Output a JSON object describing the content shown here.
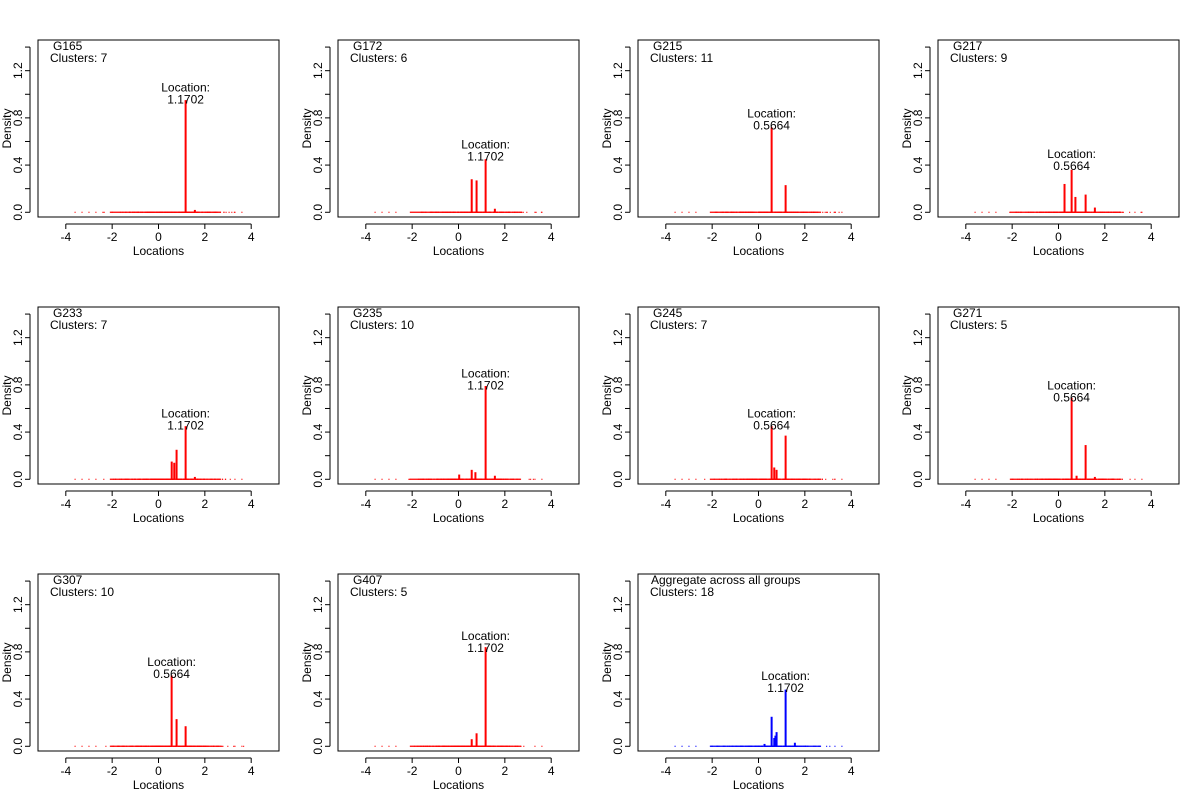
{
  "colors": {
    "group": "#ff0000",
    "aggregate": "#0000ff",
    "axis": "#000000"
  },
  "chart_data": [
    {
      "type": "line",
      "title": "G165",
      "subtitle": "Clusters: 7",
      "xlabel": "Locations",
      "ylabel": "Density",
      "xlim": [
        -5.2,
        5.2
      ],
      "ylim": [
        -0.04,
        1.46
      ],
      "xticks": [
        "-4",
        "-2",
        "0",
        "2",
        "4"
      ],
      "yticks": [
        "0.0",
        "0.4",
        "0.8",
        "1.2"
      ],
      "annotation": {
        "label": "Location:",
        "value": "1.1702",
        "x": 1.1702,
        "y": 0.92
      },
      "series": [
        {
          "color": "red",
          "x": [
            1.1702,
            1.57
          ],
          "y": [
            0.95,
            0.02
          ]
        }
      ]
    },
    {
      "type": "line",
      "title": "G172",
      "subtitle": "Clusters: 6",
      "xlabel": "Locations",
      "ylabel": "Density",
      "xlim": [
        -5.2,
        5.2
      ],
      "ylim": [
        -0.04,
        1.46
      ],
      "xticks": [
        "-4",
        "-2",
        "0",
        "2",
        "4"
      ],
      "yticks": [
        "0.0",
        "0.4",
        "0.8",
        "1.2"
      ],
      "annotation": {
        "label": "Location:",
        "value": "1.1702",
        "x": 1.1702,
        "y": 0.44
      },
      "series": [
        {
          "color": "red",
          "x": [
            0.57,
            0.78,
            1.1702,
            1.57
          ],
          "y": [
            0.28,
            0.27,
            0.45,
            0.03
          ]
        }
      ]
    },
    {
      "type": "line",
      "title": "G215",
      "subtitle": "Clusters: 11",
      "xlabel": "Locations",
      "ylabel": "Density",
      "xlim": [
        -5.2,
        5.2
      ],
      "ylim": [
        -0.04,
        1.46
      ],
      "xticks": [
        "-4",
        "-2",
        "0",
        "2",
        "4"
      ],
      "yticks": [
        "0.0",
        "0.4",
        "0.8",
        "1.2"
      ],
      "annotation": {
        "label": "Location:",
        "value": "0.5664",
        "x": 0.5664,
        "y": 0.7
      },
      "series": [
        {
          "color": "red",
          "x": [
            0.5664,
            1.1702
          ],
          "y": [
            0.72,
            0.23
          ]
        }
      ]
    },
    {
      "type": "line",
      "title": "G217",
      "subtitle": "Clusters: 9",
      "xlabel": "Locations",
      "ylabel": "Density",
      "xlim": [
        -5.2,
        5.2
      ],
      "ylim": [
        -0.04,
        1.46
      ],
      "xticks": [
        "-4",
        "-2",
        "0",
        "2",
        "4"
      ],
      "yticks": [
        "0.0",
        "0.4",
        "0.8",
        "1.2"
      ],
      "annotation": {
        "label": "Location:",
        "value": "0.5664",
        "x": 0.5664,
        "y": 0.36
      },
      "series": [
        {
          "color": "red",
          "x": [
            0.26,
            0.5664,
            0.73,
            1.1702,
            1.57
          ],
          "y": [
            0.24,
            0.36,
            0.13,
            0.15,
            0.04
          ]
        }
      ]
    },
    {
      "type": "line",
      "title": "G233",
      "subtitle": "Clusters: 7",
      "xlabel": "Locations",
      "ylabel": "Density",
      "xlim": [
        -5.2,
        5.2
      ],
      "ylim": [
        -0.04,
        1.46
      ],
      "xticks": [
        "-4",
        "-2",
        "0",
        "2",
        "4"
      ],
      "yticks": [
        "0.0",
        "0.4",
        "0.8",
        "1.2"
      ],
      "annotation": {
        "label": "Location:",
        "value": "1.1702",
        "x": 1.1702,
        "y": 0.42
      },
      "series": [
        {
          "color": "red",
          "x": [
            0.57,
            0.68,
            0.78,
            1.1702,
            1.57
          ],
          "y": [
            0.15,
            0.14,
            0.25,
            0.45,
            0.02
          ]
        }
      ]
    },
    {
      "type": "line",
      "title": "G235",
      "subtitle": "Clusters: 10",
      "xlabel": "Locations",
      "ylabel": "Density",
      "xlim": [
        -5.2,
        5.2
      ],
      "ylim": [
        -0.04,
        1.46
      ],
      "xticks": [
        "-4",
        "-2",
        "0",
        "2",
        "4"
      ],
      "yticks": [
        "0.0",
        "0.4",
        "0.8",
        "1.2"
      ],
      "annotation": {
        "label": "Location:",
        "value": "1.1702",
        "x": 1.1702,
        "y": 0.76
      },
      "series": [
        {
          "color": "red",
          "x": [
            0.03,
            0.57,
            0.73,
            1.1702,
            1.57
          ],
          "y": [
            0.04,
            0.08,
            0.06,
            0.79,
            0.03
          ]
        }
      ]
    },
    {
      "type": "line",
      "title": "G245",
      "subtitle": "Clusters: 7",
      "xlabel": "Locations",
      "ylabel": "Density",
      "xlim": [
        -5.2,
        5.2
      ],
      "ylim": [
        -0.04,
        1.46
      ],
      "xticks": [
        "-4",
        "-2",
        "0",
        "2",
        "4"
      ],
      "yticks": [
        "0.0",
        "0.4",
        "0.8",
        "1.2"
      ],
      "annotation": {
        "label": "Location:",
        "value": "0.5664",
        "x": 0.5664,
        "y": 0.42
      },
      "series": [
        {
          "color": "red",
          "x": [
            0.5664,
            0.68,
            0.78,
            1.1702
          ],
          "y": [
            0.45,
            0.1,
            0.08,
            0.37
          ]
        }
      ]
    },
    {
      "type": "line",
      "title": "G271",
      "subtitle": "Clusters: 5",
      "xlabel": "Locations",
      "ylabel": "Density",
      "xlim": [
        -5.2,
        5.2
      ],
      "ylim": [
        -0.04,
        1.46
      ],
      "xticks": [
        "-4",
        "-2",
        "0",
        "2",
        "4"
      ],
      "yticks": [
        "0.0",
        "0.4",
        "0.8",
        "1.2"
      ],
      "annotation": {
        "label": "Location:",
        "value": "0.5664",
        "x": 0.5664,
        "y": 0.66
      },
      "series": [
        {
          "color": "red",
          "x": [
            0.5664,
            0.78,
            1.1702,
            1.57
          ],
          "y": [
            0.69,
            0.03,
            0.29,
            0.02
          ]
        }
      ]
    },
    {
      "type": "line",
      "title": "G307",
      "subtitle": "Clusters: 10",
      "xlabel": "Locations",
      "ylabel": "Density",
      "xlim": [
        -5.2,
        5.2
      ],
      "ylim": [
        -0.04,
        1.46
      ],
      "xticks": [
        "-4",
        "-2",
        "0",
        "2",
        "4"
      ],
      "yticks": [
        "0.0",
        "0.4",
        "0.8",
        "1.2"
      ],
      "annotation": {
        "label": "Location:",
        "value": "0.5664",
        "x": 0.5664,
        "y": 0.58
      },
      "series": [
        {
          "color": "red",
          "x": [
            0.5664,
            0.78,
            1.1702
          ],
          "y": [
            0.6,
            0.23,
            0.17
          ]
        }
      ]
    },
    {
      "type": "line",
      "title": "G407",
      "subtitle": "Clusters: 5",
      "xlabel": "Locations",
      "ylabel": "Density",
      "xlim": [
        -5.2,
        5.2
      ],
      "ylim": [
        -0.04,
        1.46
      ],
      "xticks": [
        "-4",
        "-2",
        "0",
        "2",
        "4"
      ],
      "yticks": [
        "0.0",
        "0.4",
        "0.8",
        "1.2"
      ],
      "annotation": {
        "label": "Location:",
        "value": "1.1702",
        "x": 1.1702,
        "y": 0.8
      },
      "series": [
        {
          "color": "red",
          "x": [
            0.57,
            0.78,
            1.1702
          ],
          "y": [
            0.06,
            0.11,
            0.84
          ]
        }
      ]
    },
    {
      "type": "line",
      "title": "Aggregate across all groups",
      "subtitle": "Clusters: 18",
      "xlabel": "Locations",
      "ylabel": "Density",
      "xlim": [
        -5.2,
        5.2
      ],
      "ylim": [
        -0.04,
        1.46
      ],
      "xticks": [
        "-4",
        "-2",
        "0",
        "2",
        "4"
      ],
      "yticks": [
        "0.0",
        "0.4",
        "0.8",
        "1.2"
      ],
      "annotation": {
        "label": "Location:",
        "value": "1.1702",
        "x": 1.1702,
        "y": 0.46
      },
      "series": [
        {
          "color": "blue",
          "x": [
            0.26,
            0.5664,
            0.68,
            0.73,
            0.78,
            1.1702,
            1.57
          ],
          "y": [
            0.02,
            0.25,
            0.07,
            0.09,
            0.12,
            0.48,
            0.03
          ]
        }
      ]
    }
  ]
}
